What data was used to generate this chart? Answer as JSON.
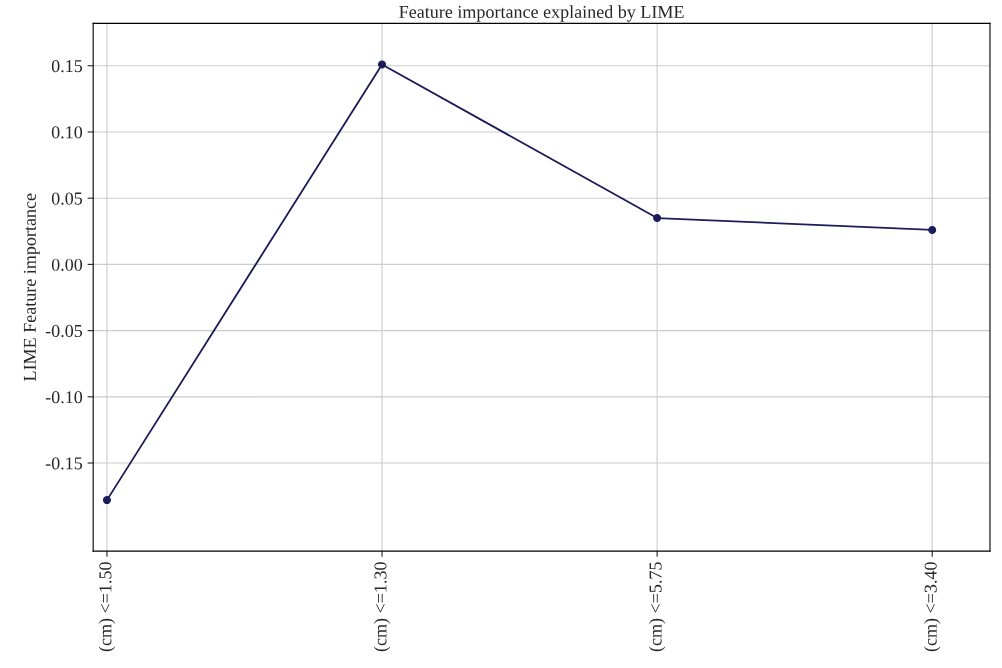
{
  "chart_data": {
    "type": "line",
    "title": "Feature importance explained by LIME",
    "ylabel": "LIME Feature importance",
    "categories": [
      "(cm) <=1.50",
      "(cm) <=1.30",
      "(cm) <=5.75",
      "(cm) <=3.40"
    ],
    "series": [
      {
        "color": "#1c1c5a",
        "values": [
          -0.178,
          0.151,
          0.035,
          0.026
        ]
      }
    ],
    "ylim": [
      -0.2165,
      0.182
    ],
    "yticks": [
      {
        "value": -0.15,
        "label": "-0.15"
      },
      {
        "value": -0.1,
        "label": "-0.10"
      },
      {
        "value": -0.05,
        "label": "-0.05"
      },
      {
        "value": 0.0,
        "label": "0.00"
      },
      {
        "value": 0.05,
        "label": "0.05"
      },
      {
        "value": 0.1,
        "label": "0.10"
      },
      {
        "value": 0.15,
        "label": "0.15"
      }
    ],
    "grid": true,
    "marker": "circle",
    "line_style": "solid",
    "legend": false
  }
}
